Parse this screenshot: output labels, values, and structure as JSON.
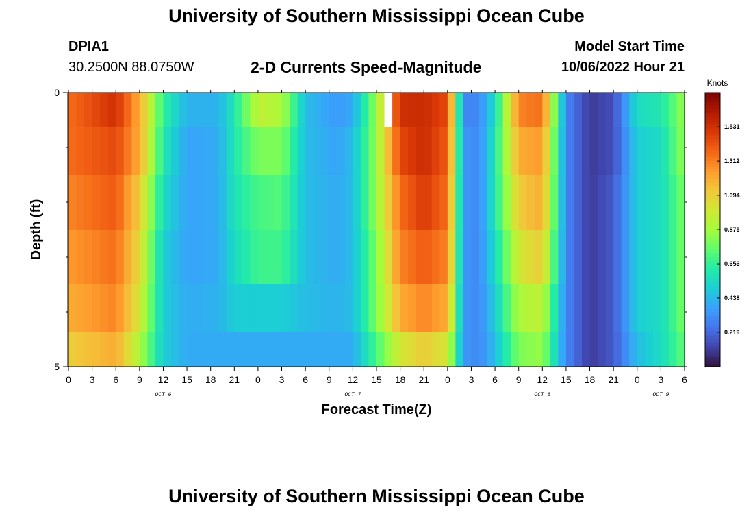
{
  "page": {
    "title": "University of Southern Mississippi Ocean Cube",
    "bottom_title": "University of Southern Mississippi Ocean Cube",
    "station_id": "DPIA1",
    "station_coords": "30.2500N  88.0750W",
    "subtitle": "2-D Currents Speed-Magnitude",
    "model_start_label": "Model Start Time",
    "model_start_value": "10/06/2022 Hour 21"
  },
  "colors": {
    "palette": [
      "#30123b",
      "#4145ab",
      "#4675ed",
      "#39a2fc",
      "#1bcfd4",
      "#24eca6",
      "#61fc6c",
      "#a4fc3b",
      "#d1e834",
      "#f3c63a",
      "#fe9b2d",
      "#f36315",
      "#d93806",
      "#b11901",
      "#7a0402"
    ]
  },
  "chart_data": {
    "type": "heatmap",
    "xlabel": "Forecast Time(Z)",
    "ylabel": "Depth (ft)",
    "ylim": [
      0,
      5
    ],
    "y_tick_labels": [
      "0",
      "5"
    ],
    "x_tick_labels": [
      "0",
      "3",
      "6",
      "9",
      "12",
      "15",
      "18",
      "21",
      "0",
      "3",
      "6",
      "9",
      "12",
      "15",
      "18",
      "21",
      "0",
      "3",
      "6",
      "9",
      "12",
      "15",
      "18",
      "21",
      "0",
      "3",
      "6"
    ],
    "date_labels": [
      {
        "label": "OCT 6",
        "hour": 12
      },
      {
        "label": "OCT 7",
        "hour": 36
      },
      {
        "label": "OCT 8",
        "hour": 60
      },
      {
        "label": "OCT 9",
        "hour": 75
      }
    ],
    "x_range_hours": [
      0,
      78
    ],
    "time_hours": [
      0,
      6,
      9,
      12,
      15,
      19,
      21,
      24,
      27,
      30,
      34,
      36,
      39,
      42,
      45,
      48,
      50,
      52,
      54,
      57,
      60,
      63,
      66,
      69,
      72,
      75,
      78
    ],
    "depth_layers": [
      0.25,
      1.0,
      2.0,
      3.0,
      4.0,
      4.75
    ],
    "speed_by_layer": [
      [
        1.35,
        1.53,
        1.2,
        0.65,
        0.42,
        0.42,
        0.6,
        0.95,
        0.9,
        0.45,
        0.35,
        0.4,
        0.85,
        1.53,
        1.55,
        1.45,
        0.3,
        0.3,
        0.55,
        1.3,
        1.35,
        0.3,
        0.1,
        0.15,
        0.55,
        0.6,
        0.85
      ],
      [
        1.35,
        1.45,
        1.2,
        0.6,
        0.38,
        0.4,
        0.6,
        0.8,
        0.8,
        0.45,
        0.38,
        0.45,
        0.85,
        1.45,
        1.55,
        1.4,
        0.35,
        0.3,
        0.6,
        1.2,
        1.25,
        0.3,
        0.1,
        0.15,
        0.5,
        0.55,
        0.85
      ],
      [
        1.3,
        1.4,
        1.1,
        0.55,
        0.38,
        0.4,
        0.58,
        0.7,
        0.72,
        0.45,
        0.4,
        0.45,
        0.85,
        1.35,
        1.5,
        1.35,
        0.35,
        0.3,
        0.6,
        1.1,
        1.2,
        0.3,
        0.1,
        0.18,
        0.5,
        0.55,
        0.8
      ],
      [
        1.25,
        1.35,
        1.05,
        0.5,
        0.38,
        0.4,
        0.55,
        0.68,
        0.68,
        0.45,
        0.4,
        0.45,
        0.8,
        1.3,
        1.4,
        1.3,
        0.35,
        0.3,
        0.55,
        1.0,
        1.1,
        0.3,
        0.1,
        0.18,
        0.5,
        0.55,
        0.8
      ],
      [
        1.2,
        1.3,
        1.0,
        0.5,
        0.4,
        0.42,
        0.5,
        0.5,
        0.5,
        0.45,
        0.42,
        0.45,
        0.8,
        1.2,
        1.3,
        1.2,
        0.35,
        0.3,
        0.5,
        0.9,
        0.95,
        0.3,
        0.1,
        0.18,
        0.5,
        0.55,
        0.8
      ],
      [
        1.1,
        1.2,
        0.9,
        0.5,
        0.4,
        0.4,
        0.4,
        0.4,
        0.4,
        0.4,
        0.4,
        0.4,
        0.7,
        1.0,
        1.1,
        1.0,
        0.35,
        0.3,
        0.45,
        0.8,
        0.85,
        0.3,
        0.1,
        0.18,
        0.45,
        0.55,
        0.75
      ]
    ],
    "missing_cells": [
      {
        "hour": 40,
        "layer": 0
      }
    ],
    "colorbar": {
      "unit": "Knots",
      "range": [
        0,
        1.75
      ],
      "tick_values": [
        1.531,
        1.312,
        1.094,
        0.875,
        0.656,
        0.438,
        0.219
      ],
      "tick_labels": [
        "1.531",
        "1.312",
        "1.094",
        "0.875",
        "0.656",
        "0.438",
        "0.219"
      ]
    }
  }
}
